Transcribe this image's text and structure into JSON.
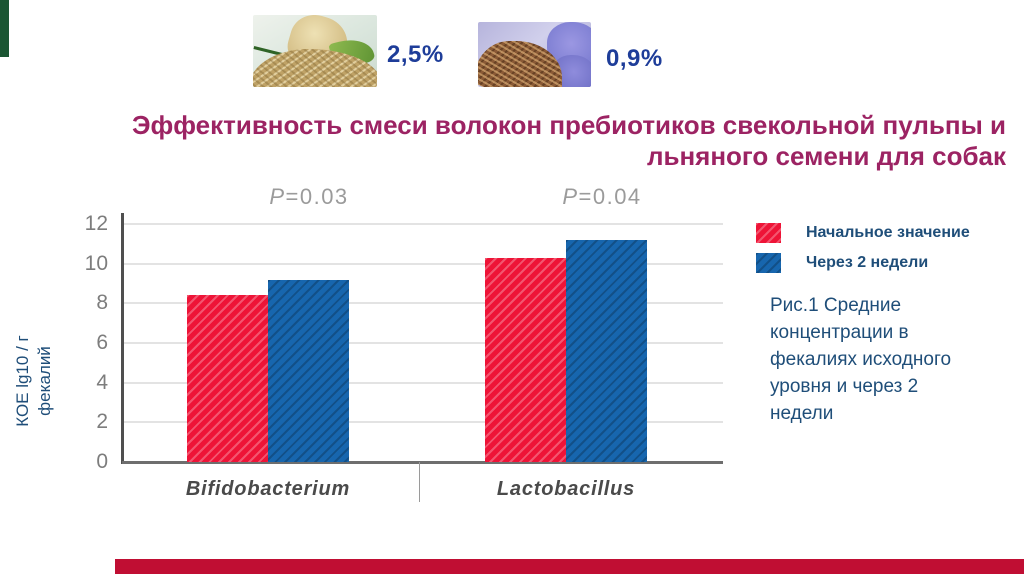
{
  "slide": {
    "title_line1": "Эффективность смеси  волокон  пребиотиков свекольной пульпы и",
    "title_line2": "льняного семени для собак",
    "title_color": "#9C2363"
  },
  "ingredients": {
    "beet_pulp": {
      "photo": "sugar-beet-with-shredded-pulp-photo",
      "percent": "2,5%"
    },
    "flaxseed": {
      "photo": "flax-seeds-with-blue-flax-flowers-photo",
      "percent": "0,9%"
    },
    "percent_color": "#1E3D99"
  },
  "chart_data": {
    "type": "bar",
    "categories": [
      "Bifidobacterium",
      "Lactobacillus"
    ],
    "series": [
      {
        "name": "Начальное значение",
        "color": "#EE1437",
        "values": [
          8.4,
          10.3
        ]
      },
      {
        "name": "Через 2 недели",
        "color": "#1766AE",
        "values": [
          9.2,
          11.2
        ]
      }
    ],
    "annotations": [
      "P=0.03",
      "P=0.04"
    ],
    "ylabel": "КОЕ lg10 / г фекалий",
    "ylabel_lines": [
      "КОЕ lg10 / г",
      "фекалий"
    ],
    "yticks": [
      0,
      2,
      4,
      6,
      8,
      10,
      12
    ],
    "ylim": [
      0,
      12
    ],
    "grid": true,
    "legend_position": "right",
    "bar_texture": "diagonal-hatch"
  },
  "caption": {
    "text": "Рис.1  Средние концентрации в фекалиях исходного уровня и через 2 недели",
    "color": "#1F4E79"
  },
  "accents": {
    "top_left_bar_color": "#1B5633",
    "bottom_bar_color": "#C00E33"
  }
}
